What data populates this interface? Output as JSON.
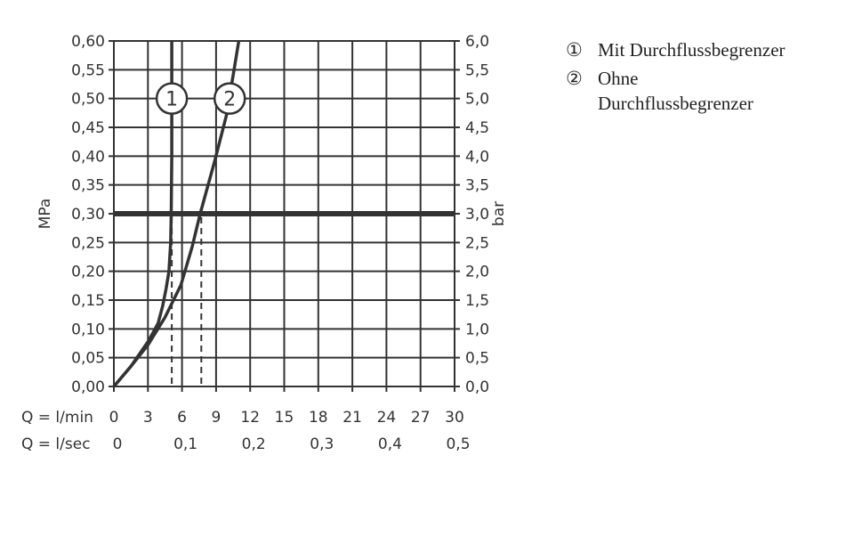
{
  "chart_data": {
    "type": "line",
    "xlabel": "Q = l/min",
    "x2label": "Q = l/sec",
    "ylabel": "MPa",
    "y2label": "bar",
    "xlim": [
      0,
      30
    ],
    "ylim": [
      0,
      0.6
    ],
    "grid": true,
    "x_ticks": [
      "0",
      "3",
      "6",
      "9",
      "12",
      "15",
      "18",
      "21",
      "24",
      "27",
      "30"
    ],
    "x2_ticks": [
      {
        "q": 0,
        "label": "0"
      },
      {
        "q": 6,
        "label": "0,1"
      },
      {
        "q": 12,
        "label": "0,2"
      },
      {
        "q": 18,
        "label": "0,3"
      },
      {
        "q": 24,
        "label": "0,4"
      },
      {
        "q": 30,
        "label": "0,5"
      }
    ],
    "y_ticks": [
      "0,00",
      "0,05",
      "0,10",
      "0,15",
      "0,20",
      "0,25",
      "0,30",
      "0,35",
      "0,40",
      "0,45",
      "0,50",
      "0,55",
      "0,60"
    ],
    "y2_ticks": [
      "0,0",
      "0,5",
      "1,0",
      "1,5",
      "2,0",
      "2,5",
      "3,0",
      "3,5",
      "4,0",
      "4,5",
      "5,0",
      "5,5",
      "6,0"
    ],
    "reference_line": {
      "y": 0.3
    },
    "series": [
      {
        "label": "1",
        "label_at": [
          5.1,
          0.5
        ],
        "points": [
          [
            0,
            0
          ],
          [
            1.5,
            0.035
          ],
          [
            3.05,
            0.079
          ],
          [
            3.9,
            0.11
          ],
          [
            4.3,
            0.14
          ],
          [
            4.6,
            0.17
          ],
          [
            4.85,
            0.2
          ],
          [
            5.0,
            0.25
          ],
          [
            5.05,
            0.3
          ],
          [
            5.1,
            0.4
          ],
          [
            5.1,
            0.6
          ]
        ],
        "dashed_at_x": 5.1
      },
      {
        "label": "2",
        "label_at": [
          10.2,
          0.5
        ],
        "points": [
          [
            0,
            0
          ],
          [
            1.5,
            0.035
          ],
          [
            3.0,
            0.072
          ],
          [
            4.5,
            0.12
          ],
          [
            5.9,
            0.176
          ],
          [
            6.9,
            0.243
          ],
          [
            7.6,
            0.3
          ],
          [
            8.9,
            0.393
          ],
          [
            9.9,
            0.47
          ],
          [
            10.5,
            0.54
          ],
          [
            11.0,
            0.6
          ]
        ],
        "dashed_at_x": 7.7
      }
    ],
    "colors": {
      "line": "#333333",
      "grid": "#333333"
    }
  },
  "legend": [
    {
      "num": "①",
      "text": "Mit Durchflussbegrenzer"
    },
    {
      "num": "②",
      "text": "Ohne Durchflussbegrenzer"
    }
  ]
}
